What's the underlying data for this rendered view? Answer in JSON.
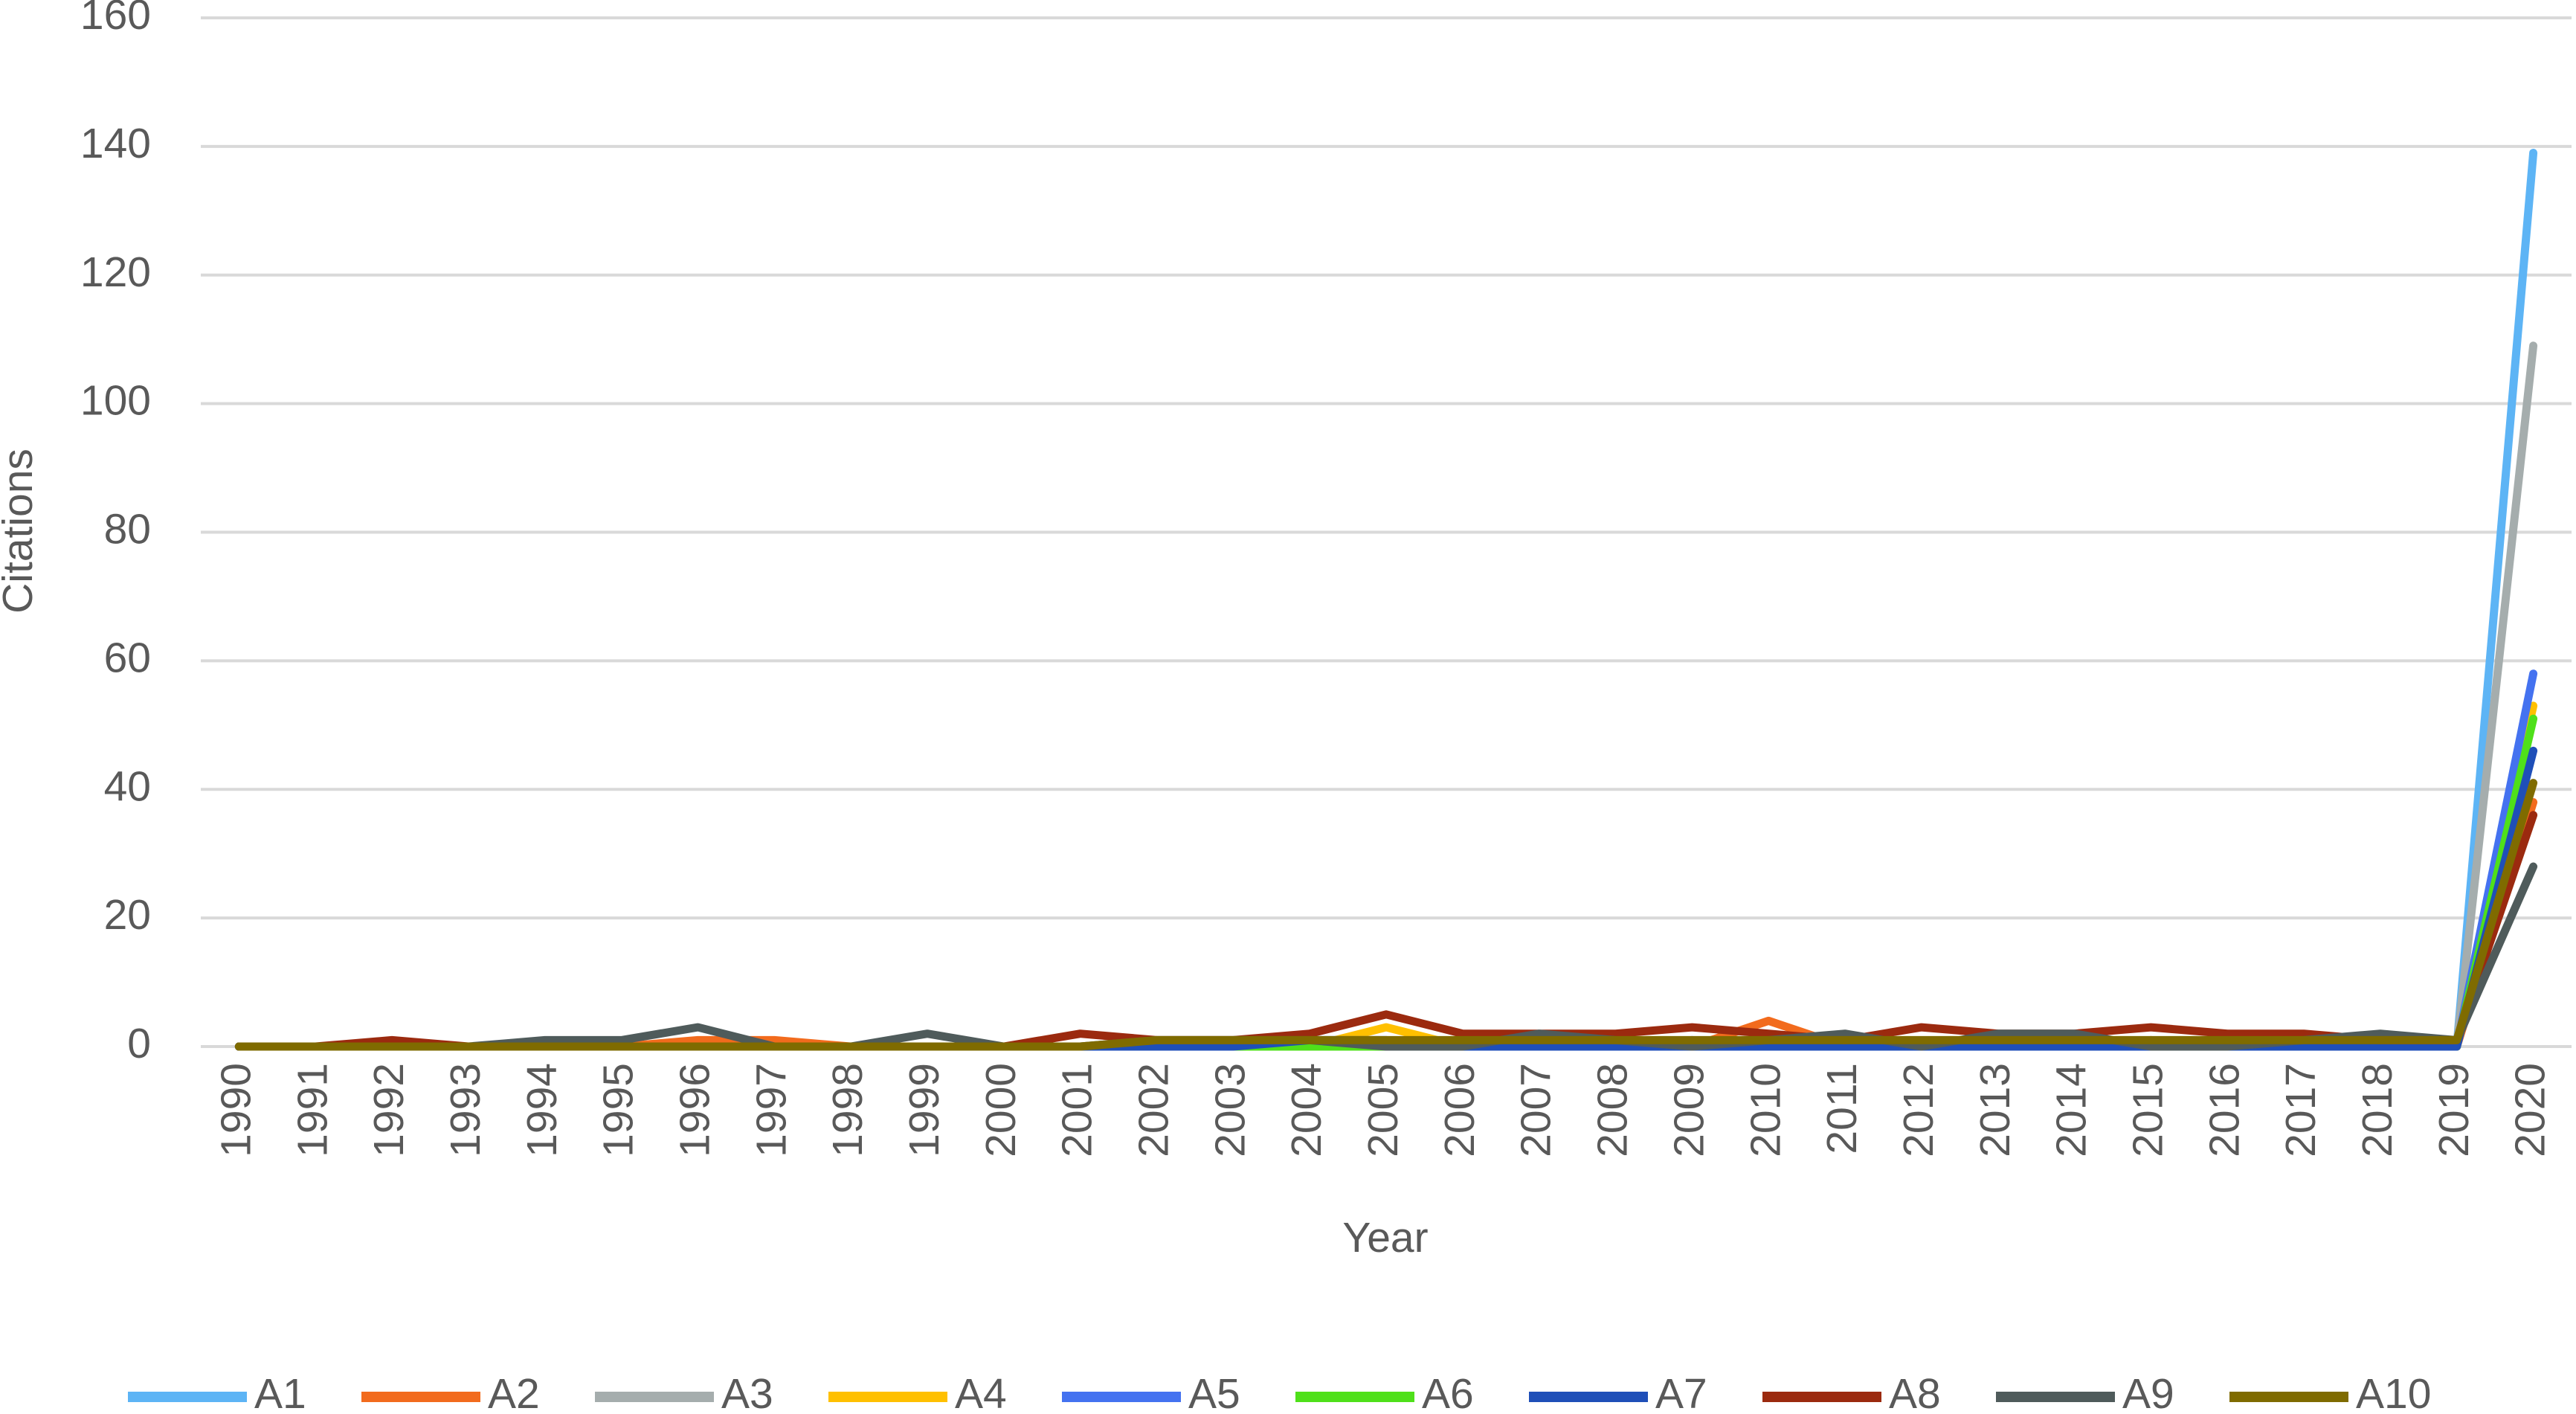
{
  "chart_data": {
    "type": "line",
    "x_label": "Year",
    "y_label": "Citations",
    "categories": [
      "1990",
      "1991",
      "1992",
      "1993",
      "1994",
      "1995",
      "1996",
      "1997",
      "1998",
      "1999",
      "2000",
      "2001",
      "2002",
      "2003",
      "2004",
      "2005",
      "2006",
      "2007",
      "2008",
      "2009",
      "2010",
      "2011",
      "2012",
      "2013",
      "2014",
      "2015",
      "2016",
      "2017",
      "2018",
      "2019",
      "2020"
    ],
    "ylim": [
      0,
      160
    ],
    "yticks": [
      0,
      20,
      40,
      60,
      80,
      100,
      120,
      140,
      160
    ],
    "grid": true,
    "legend": "bottom",
    "series": [
      {
        "name": "A1",
        "color": "#5db4f5",
        "values": [
          0,
          0,
          0,
          0,
          0,
          0,
          0,
          0,
          0,
          0,
          0,
          0,
          0,
          0,
          0,
          0,
          0,
          0,
          0,
          0,
          0,
          0,
          0,
          0,
          0,
          0,
          0,
          0,
          0,
          0,
          139
        ]
      },
      {
        "name": "A2",
        "color": "#f26b1d",
        "values": [
          0,
          0,
          0,
          0,
          0,
          0,
          1,
          1,
          0,
          0,
          0,
          0,
          0,
          0,
          0,
          0,
          0,
          0,
          0,
          0,
          4,
          0,
          0,
          0,
          0,
          1,
          0,
          0,
          0,
          0,
          38
        ]
      },
      {
        "name": "A3",
        "color": "#a5adad",
        "values": [
          0,
          0,
          0,
          0,
          0,
          0,
          0,
          0,
          0,
          0,
          0,
          0,
          0,
          0,
          0,
          0,
          0,
          0,
          0,
          0,
          0,
          0,
          0,
          0,
          0,
          0,
          0,
          0,
          0,
          0,
          109
        ]
      },
      {
        "name": "A4",
        "color": "#ffc000",
        "values": [
          0,
          0,
          0,
          0,
          0,
          0,
          0,
          0,
          0,
          0,
          0,
          0,
          0,
          0,
          0,
          3,
          0,
          0,
          0,
          0,
          0,
          0,
          0,
          0,
          0,
          0,
          0,
          0,
          0,
          0,
          53
        ]
      },
      {
        "name": "A5",
        "color": "#4472f0",
        "values": [
          0,
          0,
          0,
          0,
          0,
          0,
          0,
          0,
          0,
          0,
          0,
          0,
          0,
          0,
          0,
          0,
          0,
          0,
          0,
          1,
          0,
          0,
          0,
          0,
          0,
          0,
          0,
          0,
          0,
          0,
          58
        ]
      },
      {
        "name": "A6",
        "color": "#4fe01a",
        "values": [
          0,
          0,
          0,
          0,
          0,
          0,
          0,
          0,
          0,
          0,
          0,
          0,
          0,
          0,
          0,
          0,
          0,
          0,
          0,
          0,
          0,
          0,
          0,
          0,
          0,
          0,
          0,
          0,
          0,
          0,
          51
        ]
      },
      {
        "name": "A7",
        "color": "#1f4fb8",
        "values": [
          0,
          0,
          0,
          0,
          0,
          0,
          0,
          0,
          0,
          0,
          0,
          0,
          0,
          0,
          1,
          1,
          0,
          0,
          0,
          0,
          0,
          0,
          0,
          0,
          0,
          0,
          0,
          0,
          0,
          0,
          46
        ]
      },
      {
        "name": "A8",
        "color": "#9b2a0f",
        "values": [
          0,
          0,
          1,
          0,
          0,
          0,
          0,
          0,
          0,
          0,
          0,
          2,
          1,
          1,
          2,
          5,
          2,
          2,
          2,
          3,
          2,
          1,
          3,
          2,
          2,
          3,
          2,
          2,
          1,
          1,
          36
        ]
      },
      {
        "name": "A9",
        "color": "#4f5b5b",
        "values": [
          0,
          0,
          0,
          0,
          1,
          1,
          3,
          0,
          0,
          2,
          0,
          0,
          1,
          1,
          1,
          0,
          0,
          2,
          1,
          0,
          1,
          2,
          0,
          2,
          2,
          0,
          0,
          1,
          2,
          1,
          28
        ]
      },
      {
        "name": "A10",
        "color": "#7f6b00",
        "values": [
          0,
          0,
          0,
          0,
          0,
          0,
          0,
          0,
          0,
          0,
          0,
          0,
          1,
          1,
          1,
          1,
          1,
          1,
          1,
          1,
          1,
          1,
          1,
          1,
          1,
          1,
          1,
          1,
          1,
          1,
          41
        ]
      }
    ]
  }
}
